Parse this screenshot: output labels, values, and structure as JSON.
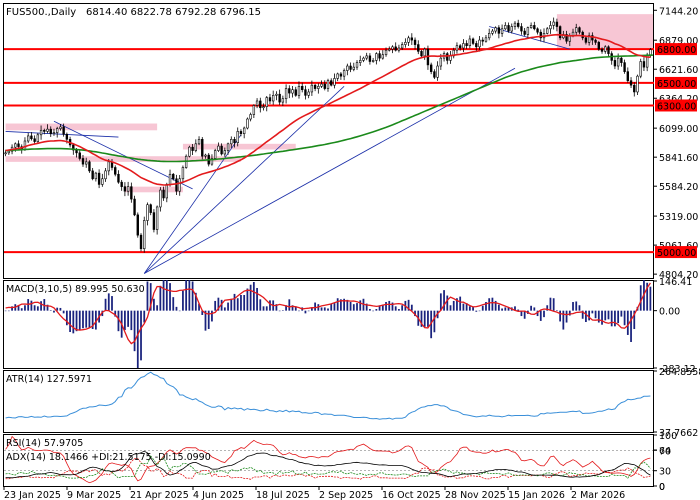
{
  "colors": {
    "up": "#000000",
    "down": "#000000",
    "ma_red": "#e31a1c",
    "ma_green": "#1b8a1b",
    "level": "#ff0000",
    "zone": "#f7c6d4",
    "trend": "#1a2ea8",
    "macd_hist": "#1a237e",
    "macd_signal": "#e31a1c",
    "atr": "#3a8fd9",
    "rsi": "#e31a1c",
    "adx": "#000000",
    "plus_di": "#1b8a1b",
    "minus_di": "#e31a1c"
  },
  "chart_data": {
    "type": "candlestick",
    "title": "FUS500.,Daily",
    "ohlc_text": "6814.40 6822.78 6792.28 6796.15",
    "y_ticks": [
      "7144.20",
      "6879.00",
      "6621.60",
      "6364.20",
      "6099.00",
      "5841.60",
      "5584.20",
      "5319.00",
      "5061.60",
      "4804.20"
    ],
    "ylim": [
      4770,
      7200
    ],
    "x_ticks": [
      "23 Jan 2025",
      "9 Mar 2025",
      "21 Apr 2025",
      "4 Jun 2025",
      "18 Jul 2025",
      "2 Sep 2025",
      "16 Oct 2025",
      "28 Nov 2025",
      "15 Jan 2026",
      "2 Mar 2026"
    ],
    "levels": [
      {
        "value": 6800,
        "label": "6800.00"
      },
      {
        "value": 6500,
        "label": "6500.00"
      },
      {
        "value": 6300,
        "label": "6300.00"
      },
      {
        "value": 5000,
        "label": "5000.00"
      }
    ],
    "zones": [
      {
        "x_start": 0,
        "x_end": 47,
        "y_low": 6080,
        "y_high": 6140
      },
      {
        "x_start": 0,
        "x_end": 73,
        "y_low": 5800,
        "y_high": 5850
      },
      {
        "x_start": 37,
        "x_end": 55,
        "y_low": 5530,
        "y_high": 5580
      },
      {
        "x_start": 171,
        "x_end": 255,
        "y_low": 6800,
        "y_high": 7110
      },
      {
        "x_start": 55,
        "x_end": 90,
        "y_low": 5910,
        "y_high": 5960
      }
    ],
    "closes": [
      5880,
      5895,
      5930,
      5960,
      5935,
      5910,
      5985,
      6030,
      6005,
      5980,
      6040,
      6080,
      6070,
      6090,
      6050,
      6060,
      6095,
      6110,
      6045,
      6000,
      5950,
      5905,
      5880,
      5830,
      5780,
      5800,
      5720,
      5650,
      5700,
      5600,
      5650,
      5720,
      5800,
      5750,
      5690,
      5620,
      5580,
      5540,
      5580,
      5470,
      5330,
      5150,
      5030,
      5280,
      5420,
      5350,
      5200,
      5400,
      5550,
      5480,
      5600,
      5690,
      5650,
      5540,
      5650,
      5750,
      5850,
      5930,
      5900,
      5960,
      6000,
      5850,
      5860,
      5780,
      5830,
      5900,
      5940,
      5870,
      5900,
      5960,
      6000,
      5970,
      6070,
      6050,
      6100,
      6180,
      6220,
      6300,
      6340,
      6280,
      6290,
      6370,
      6340,
      6390,
      6400,
      6330,
      6360,
      6450,
      6410,
      6440,
      6390,
      6470,
      6440,
      6390,
      6420,
      6480,
      6450,
      6470,
      6490,
      6450,
      6520,
      6480,
      6540,
      6580,
      6560,
      6610,
      6650,
      6620,
      6640,
      6680,
      6700,
      6720,
      6740,
      6690,
      6700,
      6760,
      6720,
      6750,
      6790,
      6800,
      6820,
      6790,
      6810,
      6840,
      6860,
      6900,
      6880,
      6840,
      6780,
      6740,
      6800,
      6660,
      6600,
      6550,
      6650,
      6720,
      6760,
      6700,
      6740,
      6790,
      6830,
      6810,
      6850,
      6830,
      6890,
      6850,
      6820,
      6880,
      6870,
      6900,
      6940,
      6960,
      6990,
      6940,
      6980,
      7010,
      6960,
      7000,
      7030,
      7000,
      6960,
      6930,
      6990,
      7010,
      6980,
      6950,
      6900,
      6940,
      6980,
      7010,
      7040,
      7000,
      6900,
      6930,
      6870,
      6920,
      6950,
      6990,
      6950,
      6900,
      6860,
      6920,
      6880,
      6860,
      6800,
      6780,
      6820,
      6760,
      6700,
      6650,
      6720,
      6680,
      6600,
      6520,
      6480,
      6420,
      6560,
      6690,
      6640,
      6750,
      6796
    ],
    "ma_red": [
      5900,
      5905,
      5910,
      5915,
      5920,
      5925,
      5935,
      5945,
      5952,
      5958,
      5965,
      5972,
      5978,
      5982,
      5985,
      5986,
      5988,
      5989,
      5986,
      5980,
      5970,
      5960,
      5948,
      5935,
      5920,
      5905,
      5890,
      5872,
      5858,
      5840,
      5826,
      5815,
      5808,
      5800,
      5790,
      5778,
      5765,
      5750,
      5736,
      5720,
      5700,
      5680,
      5660,
      5648,
      5635,
      5622,
      5610,
      5602,
      5598,
      5595,
      5595,
      5598,
      5602,
      5605,
      5612,
      5620,
      5630,
      5642,
      5655,
      5668,
      5682,
      5692,
      5700,
      5708,
      5716,
      5725,
      5735,
      5745,
      5755,
      5766,
      5778,
      5790,
      5804,
      5818,
      5834,
      5852,
      5872,
      5892,
      5914,
      5934,
      5956,
      5978,
      5998,
      6020,
      6040,
      6062,
      6082,
      6104,
      6126,
      6146,
      6166,
      6184,
      6200,
      6214,
      6228,
      6242,
      6256,
      6270,
      6284,
      6296,
      6310,
      6324,
      6338,
      6352,
      6366,
      6380,
      6394,
      6408,
      6422,
      6436,
      6450,
      6466,
      6482,
      6496,
      6512,
      6528,
      6542,
      6556,
      6572,
      6588,
      6604,
      6618,
      6634,
      6650,
      6664,
      6680,
      6694,
      6706,
      6716,
      6724,
      6732,
      6736,
      6738,
      6738,
      6736,
      6738,
      6740,
      6740,
      6742,
      6746,
      6750,
      6754,
      6760,
      6764,
      6770,
      6776,
      6780,
      6786,
      6792,
      6798,
      6806,
      6814,
      6824,
      6832,
      6840,
      6850,
      6856,
      6864,
      6874,
      6880,
      6886,
      6890,
      6896,
      6902,
      6906,
      6910,
      6912,
      6914,
      6918,
      6922,
      6926,
      6928,
      6926,
      6924,
      6920,
      6918,
      6918,
      6920,
      6920,
      6918,
      6914,
      6912,
      6908,
      6904,
      6896,
      6888,
      6882,
      6874,
      6862,
      6848,
      6838,
      6826,
      6810,
      6792,
      6776,
      6758,
      6748,
      6742,
      6734,
      6730,
      6728
    ],
    "ma_green": [
      5900,
      5902,
      5903,
      5905,
      5906,
      5908,
      5910,
      5911,
      5913,
      5914,
      5915,
      5916,
      5917,
      5918,
      5918,
      5918,
      5918,
      5918,
      5917,
      5916,
      5914,
      5912,
      5910,
      5907,
      5904,
      5901,
      5897,
      5893,
      5889,
      5884,
      5879,
      5874,
      5868,
      5863,
      5858,
      5853,
      5848,
      5843,
      5838,
      5833,
      5828,
      5824,
      5820,
      5817,
      5814,
      5811,
      5809,
      5807,
      5805,
      5804,
      5803,
      5803,
      5803,
      5803,
      5804,
      5805,
      5806,
      5807,
      5809,
      5810,
      5812,
      5814,
      5816,
      5818,
      5820,
      5822,
      5825,
      5827,
      5830,
      5833,
      5836,
      5839,
      5842,
      5845,
      5848,
      5851,
      5855,
      5858,
      5862,
      5866,
      5870,
      5874,
      5878,
      5882,
      5886,
      5890,
      5894,
      5898,
      5903,
      5907,
      5911,
      5916,
      5920,
      5925,
      5929,
      5934,
      5939,
      5944,
      5949,
      5954,
      5960,
      5966,
      5972,
      5978,
      5985,
      5992,
      5999,
      6006,
      6014,
      6022,
      6030,
      6039,
      6048,
      6057,
      6066,
      6076,
      6086,
      6096,
      6106,
      6117,
      6128,
      6140,
      6152,
      6164,
      6176,
      6188,
      6200,
      6212,
      6224,
      6236,
      6248,
      6260,
      6272,
      6284,
      6296,
      6308,
      6320,
      6332,
      6344,
      6356,
      6368,
      6380,
      6392,
      6404,
      6416,
      6428,
      6440,
      6452,
      6464,
      6476,
      6488,
      6500,
      6512,
      6524,
      6536,
      6548,
      6558,
      6568,
      6578,
      6588,
      6598,
      6606,
      6614,
      6622,
      6630,
      6638,
      6644,
      6650,
      6656,
      6662,
      6668,
      6674,
      6680,
      6684,
      6688,
      6692,
      6696,
      6700,
      6704,
      6708,
      6712,
      6716,
      6720,
      6724,
      6726,
      6728,
      6730,
      6732,
      6734,
      6735,
      6736,
      6737,
      6738,
      6739,
      6740,
      6741,
      6742,
      6743,
      6744,
      6745,
      6746,
      6747,
      6748,
      6750,
      6752
    ],
    "trendlines": [
      {
        "x1": 0,
        "y1": 6070,
        "x2": 35,
        "y2": 6020
      },
      {
        "x1": 15,
        "y1": 6160,
        "x2": 58,
        "y2": 5560
      },
      {
        "x1": 43,
        "y1": 4810,
        "x2": 105,
        "y2": 6470
      },
      {
        "x1": 43,
        "y1": 4810,
        "x2": 158,
        "y2": 6630
      },
      {
        "x1": 43,
        "y1": 4810,
        "x2": 73,
        "y2": 6040
      },
      {
        "x1": 150,
        "y1": 7000,
        "x2": 175,
        "y2": 6800
      },
      {
        "x1": 213,
        "y1": 7080,
        "x2": 240,
        "y2": 6480
      },
      {
        "x1": 210,
        "y1": 6670,
        "x2": 240,
        "y2": 6330
      }
    ],
    "indicators": {
      "macd": {
        "label": "MACD(3,10,5) 89.995 50.630",
        "ticks": [
          "146.41",
          "0.00",
          "-283.12"
        ],
        "range": [
          -283.12,
          146.41
        ]
      },
      "atr": {
        "label": "ATR(14) 127.5971",
        "ticks": [
          "264.8558",
          "37.7662"
        ],
        "range": [
          37.7662,
          264.8558
        ]
      },
      "rsi": {
        "label": "RSI(14) 57.9705",
        "ticks": [
          "100",
          "70",
          "30",
          "0"
        ],
        "range": [
          0,
          100
        ]
      },
      "adx": {
        "label": "ADX(14) 18.1466 +DI:21.5175 -DI:15.0990",
        "ticks": [
          "64",
          "0"
        ],
        "range": [
          0,
          64
        ]
      }
    }
  }
}
